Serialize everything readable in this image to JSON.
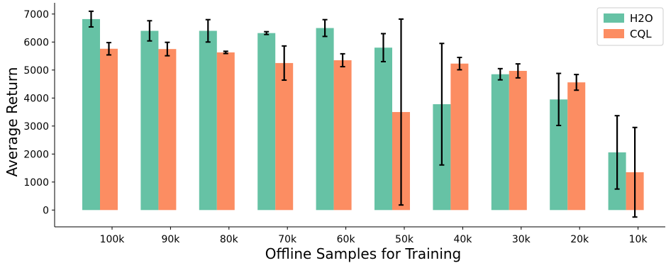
{
  "chart_data": {
    "type": "bar",
    "xlabel": "Offline Samples for Training",
    "ylabel": "Average Return",
    "ylim": [
      -600,
      7400
    ],
    "yticks": [
      0,
      1000,
      2000,
      3000,
      4000,
      5000,
      6000,
      7000
    ],
    "categories": [
      "100k",
      "90k",
      "80k",
      "70k",
      "60k",
      "50k",
      "40k",
      "30k",
      "20k",
      "10k"
    ],
    "series": [
      {
        "name": "H2O",
        "color": "#66c2a5",
        "values": [
          6820,
          6400,
          6400,
          6320,
          6500,
          5800,
          3780,
          4850,
          3950,
          2060
        ],
        "err": [
          280,
          360,
          400,
          50,
          300,
          500,
          2170,
          200,
          930,
          1310
        ]
      },
      {
        "name": "CQL",
        "color": "#fc8d62",
        "values": [
          5760,
          5750,
          5630,
          5250,
          5350,
          3500,
          5230,
          4970,
          4560,
          1350
        ],
        "err": [
          220,
          240,
          40,
          610,
          230,
          3320,
          220,
          250,
          280,
          1600
        ]
      }
    ],
    "legend_position": "top-right",
    "grid": false
  }
}
